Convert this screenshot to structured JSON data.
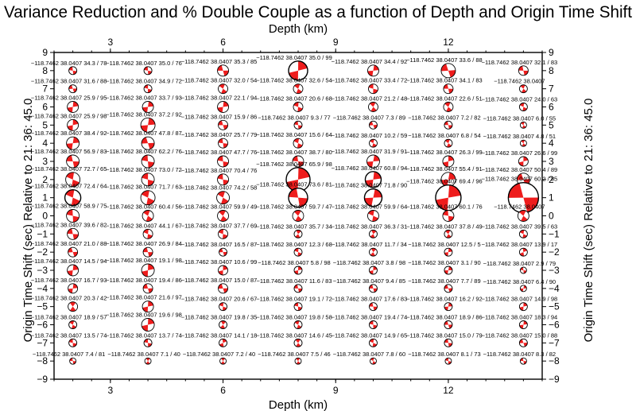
{
  "chart_data": {
    "type": "scatter",
    "title": "Variance Reduction and % Double Couple as a function of Depth and Origin Time Shift",
    "xlabel": "Depth (km)",
    "ylabel": "Origin Time Shift (sec) Relative to 21: 36: 45.0",
    "xlim": [
      1.5,
      14.5
    ],
    "ylim": [
      -9,
      9
    ],
    "x_ticks": [
      3,
      6,
      9,
      12
    ],
    "y_ticks": [
      -9,
      -8,
      -7,
      -6,
      -5,
      -4,
      -3,
      -2,
      -1,
      0,
      1,
      2,
      3,
      4,
      5,
      6,
      7,
      8,
      9
    ],
    "x_tick_labels": [
      "3",
      "6",
      "9",
      "12"
    ],
    "y_tick_labels": [
      "−9",
      "−8",
      "−7",
      "−6",
      "−5",
      "−4",
      "−3",
      "−2",
      "−1",
      "0",
      "1",
      "2",
      "3",
      "4",
      "5",
      "6",
      "7",
      "8",
      "9"
    ],
    "grid": false,
    "mark_fill": "#ee1c1c",
    "mark_bg": "#ffffff",
    "lon": "−118.7462",
    "lat": "38.0407",
    "depths": [
      2,
      4,
      6,
      8,
      10,
      12,
      14
    ],
    "rows": [
      {
        "t": 8,
        "cells": [
          {
            "a": "34.3 / 78",
            "s": 5
          },
          {
            "a": "35.0 / 76",
            "s": 5
          },
          {
            "a": "35.3 / 85",
            "s": 7
          },
          {
            "a": "35.0 / 99",
            "s": 12
          },
          {
            "a": "34.4 / 92",
            "s": 7
          },
          {
            "a": "33.6 / 88",
            "s": 9
          },
          {
            "a": "32.1 / 83",
            "s": 6
          }
        ]
      },
      {
        "t": 7,
        "cells": [
          {
            "a": "31.6 / 88",
            "s": 5
          },
          {
            "a": "34.9 / 72",
            "s": 5
          },
          {
            "a": "32.0 / 54",
            "s": 6
          },
          {
            "a": "32.6 / 54",
            "s": 6
          },
          {
            "a": "33.4 / 72",
            "s": 6
          },
          {
            "a": "34.1 / 83",
            "s": 6
          },
          {
            "a": "",
            "s": 5
          }
        ]
      },
      {
        "t": 6,
        "cells": [
          {
            "a": "25.9 / 95",
            "s": 7
          },
          {
            "a": "33.7 / 93",
            "s": 7
          },
          {
            "a": "22.1 / 94",
            "s": 7
          },
          {
            "a": "20.6 / 68",
            "s": 6
          },
          {
            "a": "21.2 / 48",
            "s": 6
          },
          {
            "a": "22.6 / 51",
            "s": 6
          },
          {
            "a": "24.0 / 63",
            "s": 5
          }
        ]
      },
      {
        "t": 5,
        "cells": [
          {
            "a": "25.9 / 98",
            "s": 7
          },
          {
            "a": "37.2 / 92",
            "s": 9
          },
          {
            "a": "15.9 / 86",
            "s": 6
          },
          {
            "a": "9.3 / 77",
            "s": 5
          },
          {
            "a": "7.3 / 89",
            "s": 5
          },
          {
            "a": "7.2 / 82",
            "s": 5
          },
          {
            "a": "6.0 / 55",
            "s": 4
          }
        ]
      },
      {
        "t": 4,
        "cells": [
          {
            "a": "38.4 / 92",
            "s": 8
          },
          {
            "a": "47.8 / 87",
            "s": 8
          },
          {
            "a": "25.7 / 79",
            "s": 6
          },
          {
            "a": "15.6 / 64",
            "s": 6
          },
          {
            "a": "10.2 / 59",
            "s": 5
          },
          {
            "a": "6.8 / 54",
            "s": 5
          },
          {
            "a": "4.8 / 51",
            "s": 4
          }
        ]
      },
      {
        "t": 3,
        "cells": [
          {
            "a": "56.9 / 83",
            "s": 8
          },
          {
            "a": "62.2 / 76",
            "s": 8
          },
          {
            "a": "47.7 / 76",
            "s": 7
          },
          {
            "a": "38.7 / 80",
            "s": 7
          },
          {
            "a": "31.9 / 91",
            "s": 8
          },
          {
            "a": "26.3 / 99",
            "s": 7
          },
          {
            "a": "26.6 / 99",
            "s": 6
          }
        ]
      },
      {
        "t": 2,
        "cells": [
          {
            "a": "72.7 / 65",
            "s": 9
          },
          {
            "a": "73.0 / 72",
            "s": 8
          },
          {
            "a": "70.4 / 76",
            "s": 7
          },
          {
            "a": "65.9 / 98",
            "s": 15
          },
          {
            "a": "60.8 / 94",
            "s": 10
          },
          {
            "a": "55.4 / 91",
            "s": 9
          },
          {
            "a": "50.4 / 89",
            "s": 8
          }
        ]
      },
      {
        "t": 1,
        "cells": [
          {
            "a": "72.4 / 64",
            "s": 10
          },
          {
            "a": "71.7 / 63",
            "s": 9
          },
          {
            "a": "74.2 / 58",
            "s": 8
          },
          {
            "a": "73.6 / 81",
            "s": 12
          },
          {
            "a": "71.8 / 90",
            "s": 11
          },
          {
            "a": "69.4 / 96",
            "s": 16
          },
          {
            "a": "60.2 / 85",
            "s": 19
          }
        ]
      },
      {
        "t": 0,
        "cells": [
          {
            "a": "58.9 / 75",
            "s": 8
          },
          {
            "a": "60.4 / 56",
            "s": 7
          },
          {
            "a": "59.9 / 49",
            "s": 7
          },
          {
            "a": "59.7 / 47",
            "s": 7
          },
          {
            "a": "59.9 / 64",
            "s": 7
          },
          {
            "a": "60.1 / 76",
            "s": 7
          },
          {
            "a": "",
            "s": 7
          }
        ]
      },
      {
        "t": -1,
        "cells": [
          {
            "a": "39.6 / 82",
            "s": 7
          },
          {
            "a": "44.1 / 67",
            "s": 6
          },
          {
            "a": "37.7 / 69",
            "s": 6
          },
          {
            "a": "35.7 / 34",
            "s": 5
          },
          {
            "a": "36.3 / 31",
            "s": 5
          },
          {
            "a": "37.8 / 49",
            "s": 5
          },
          {
            "a": "39.5 / 63",
            "s": 5
          }
        ]
      },
      {
        "t": -2,
        "cells": [
          {
            "a": "21.0 / 88",
            "s": 6
          },
          {
            "a": "26.9 / 84",
            "s": 6
          },
          {
            "a": "16.5 / 87",
            "s": 5
          },
          {
            "a": "12.3 / 68",
            "s": 5
          },
          {
            "a": "11.7 / 34",
            "s": 5
          },
          {
            "a": "12.5 / 5",
            "s": 5
          },
          {
            "a": "13.9 / 17",
            "s": 5
          }
        ]
      },
      {
        "t": -3,
        "cells": [
          {
            "a": "14.5 / 94",
            "s": 7
          },
          {
            "a": "19.1 / 98",
            "s": 8
          },
          {
            "a": "10.6 / 99",
            "s": 6
          },
          {
            "a": "5.8 / 98",
            "s": 5
          },
          {
            "a": "3.8 / 98",
            "s": 5
          },
          {
            "a": "3.1 / 90",
            "s": 5
          },
          {
            "a": "2.9 / 79",
            "s": 4
          }
        ]
      },
      {
        "t": -4,
        "cells": [
          {
            "a": "16.7 / 93",
            "s": 6
          },
          {
            "a": "19.4 / 86",
            "s": 6
          },
          {
            "a": "15.0 / 87",
            "s": 6
          },
          {
            "a": "11.6 / 83",
            "s": 5
          },
          {
            "a": "9.4 / 85",
            "s": 5
          },
          {
            "a": "7.7 / 89",
            "s": 5
          },
          {
            "a": "6.4 / 90",
            "s": 4
          }
        ]
      },
      {
        "t": -5,
        "cells": [
          {
            "a": "20.3 / 42",
            "s": 6
          },
          {
            "a": "21.6 / 97",
            "s": 7
          },
          {
            "a": "20.6 / 67",
            "s": 5
          },
          {
            "a": "19.1 / 72",
            "s": 5
          },
          {
            "a": "17.6 / 83",
            "s": 5
          },
          {
            "a": "16.2 / 92",
            "s": 5
          },
          {
            "a": "14.9 / 98",
            "s": 5
          }
        ]
      },
      {
        "t": -6,
        "cells": [
          {
            "a": "18.9 / 57",
            "s": 5
          },
          {
            "a": "19.6 / 98",
            "s": 8
          },
          {
            "a": "19.8 / 35",
            "s": 5
          },
          {
            "a": "19.8 / 58",
            "s": 5
          },
          {
            "a": "19.4 / 74",
            "s": 5
          },
          {
            "a": "18.9 / 86",
            "s": 5
          },
          {
            "a": "18.3 / 94",
            "s": 5
          }
        ]
      },
      {
        "t": -7,
        "cells": [
          {
            "a": "13.5 / 74",
            "s": 5
          },
          {
            "a": "13.7 / 74",
            "s": 5
          },
          {
            "a": "14.1 / 18",
            "s": 5
          },
          {
            "a": "14.6 / 45",
            "s": 5
          },
          {
            "a": "14.9 / 65",
            "s": 5
          },
          {
            "a": "15.0 / 79",
            "s": 5
          },
          {
            "a": "15.0 / 88",
            "s": 5
          }
        ]
      },
      {
        "t": -8,
        "cells": [
          {
            "a": "7.4 / 81",
            "s": 4
          },
          {
            "a": "7.1 / 40",
            "s": 4
          },
          {
            "a": "7.2 / 40",
            "s": 4
          },
          {
            "a": "7.5 / 46",
            "s": 4
          },
          {
            "a": "7.8 / 60",
            "s": 4
          },
          {
            "a": "8.1 / 73",
            "s": 4
          },
          {
            "a": "8.3 / 82",
            "s": 4
          }
        ]
      }
    ]
  }
}
